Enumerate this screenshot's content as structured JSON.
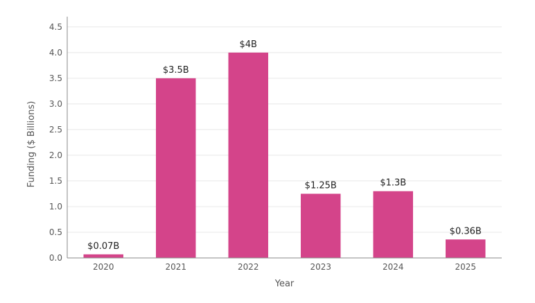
{
  "chart_data": {
    "type": "bar",
    "title": "",
    "xlabel": "Year",
    "ylabel": "Funding ($ Billions)",
    "categories": [
      "2020",
      "2021",
      "2022",
      "2023",
      "2024",
      "2025"
    ],
    "values": [
      0.07,
      3.5,
      4.0,
      1.25,
      1.3,
      0.36
    ],
    "data_labels": [
      "$0.07B",
      "$3.5B",
      "$4B",
      "$1.25B",
      "$1.3B",
      "$0.36B"
    ],
    "ylim": [
      0,
      4.7
    ],
    "yticks": [
      0.0,
      0.5,
      1.0,
      1.5,
      2.0,
      2.5,
      3.0,
      3.5,
      4.0,
      4.5
    ],
    "ytick_labels": [
      "0.0",
      "0.5",
      "1.0",
      "1.5",
      "2.0",
      "2.5",
      "3.0",
      "3.5",
      "4.0",
      "4.5"
    ],
    "grid": "horizontal",
    "legend": "none",
    "colors": {
      "bar": "#d4448a",
      "grid": "#e8e8e8",
      "axis": "#8a8a8a"
    }
  }
}
